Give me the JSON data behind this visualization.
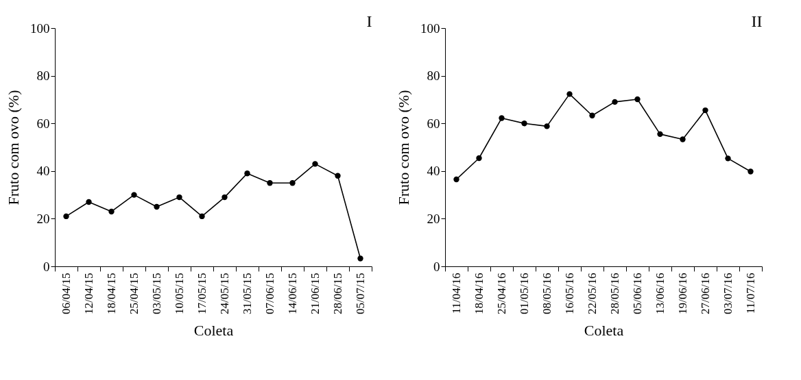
{
  "chart_data": [
    {
      "type": "line",
      "title": "I",
      "xlabel": "Coleta",
      "ylabel": "Fruto com ovo (%)",
      "categories": [
        "06/04/15",
        "12/04/15",
        "18/04/15",
        "25/04/15",
        "03/05/15",
        "10/05/15",
        "17/05/15",
        "24/05/15",
        "31/05/15",
        "07/06/15",
        "14/06/15",
        "21/06/15",
        "28/06/15",
        "05/07/15"
      ],
      "series": [
        {
          "color": "#000000",
          "values": [
            21,
            27,
            23,
            30,
            25,
            29,
            21,
            29,
            39,
            35,
            35,
            43,
            38,
            3.3
          ]
        }
      ],
      "ylim": [
        0,
        100
      ],
      "yticks": [
        0,
        20,
        40,
        60,
        80,
        100
      ],
      "grid": false,
      "marker": "circle",
      "line_style": "solid"
    },
    {
      "type": "line",
      "title": "II",
      "xlabel": "Coleta",
      "ylabel": "Fruto com ovo (%)",
      "categories": [
        "11/04/16",
        "18/04/16",
        "25/04/16",
        "01/05/16",
        "08/05/16",
        "16/05/16",
        "22/05/16",
        "28/05/16",
        "05/06/16",
        "13/06/16",
        "19/06/16",
        "27/06/16",
        "03/07/16",
        "11/07/16"
      ],
      "series": [
        {
          "color": "#000000",
          "values": [
            36.5,
            45.4,
            62.2,
            60,
            58.8,
            72.3,
            63.3,
            69,
            70.1,
            55.5,
            53.3,
            65.5,
            45.3,
            39.8
          ]
        }
      ],
      "ylim": [
        0,
        100
      ],
      "yticks": [
        0,
        20,
        40,
        60,
        80,
        100
      ],
      "grid": false,
      "marker": "circle",
      "line_style": "solid"
    }
  ]
}
